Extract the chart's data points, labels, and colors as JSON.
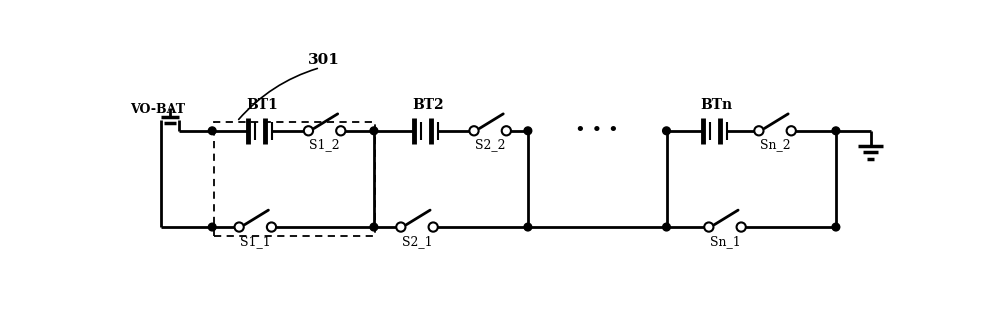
{
  "bg_color": "#ffffff",
  "line_color": "#000000",
  "line_width": 2.0,
  "fig_width": 10.0,
  "fig_height": 3.2,
  "dpi": 100,
  "label_301": "301",
  "label_vobat": "VO-BAT",
  "label_bt1": "BT1",
  "label_bt2": "BT2",
  "label_btn": "BTn",
  "label_s1_2": "S1_2",
  "label_s2_2": "S2_2",
  "label_sn_2": "Sn_2",
  "label_s1_1": "S1_1",
  "label_s2_1": "S2_1",
  "label_sn_1": "Sn_1",
  "font_size_label": 9,
  "font_size_301": 11,
  "font_size_vobat": 9,
  "font_size_bt": 10
}
